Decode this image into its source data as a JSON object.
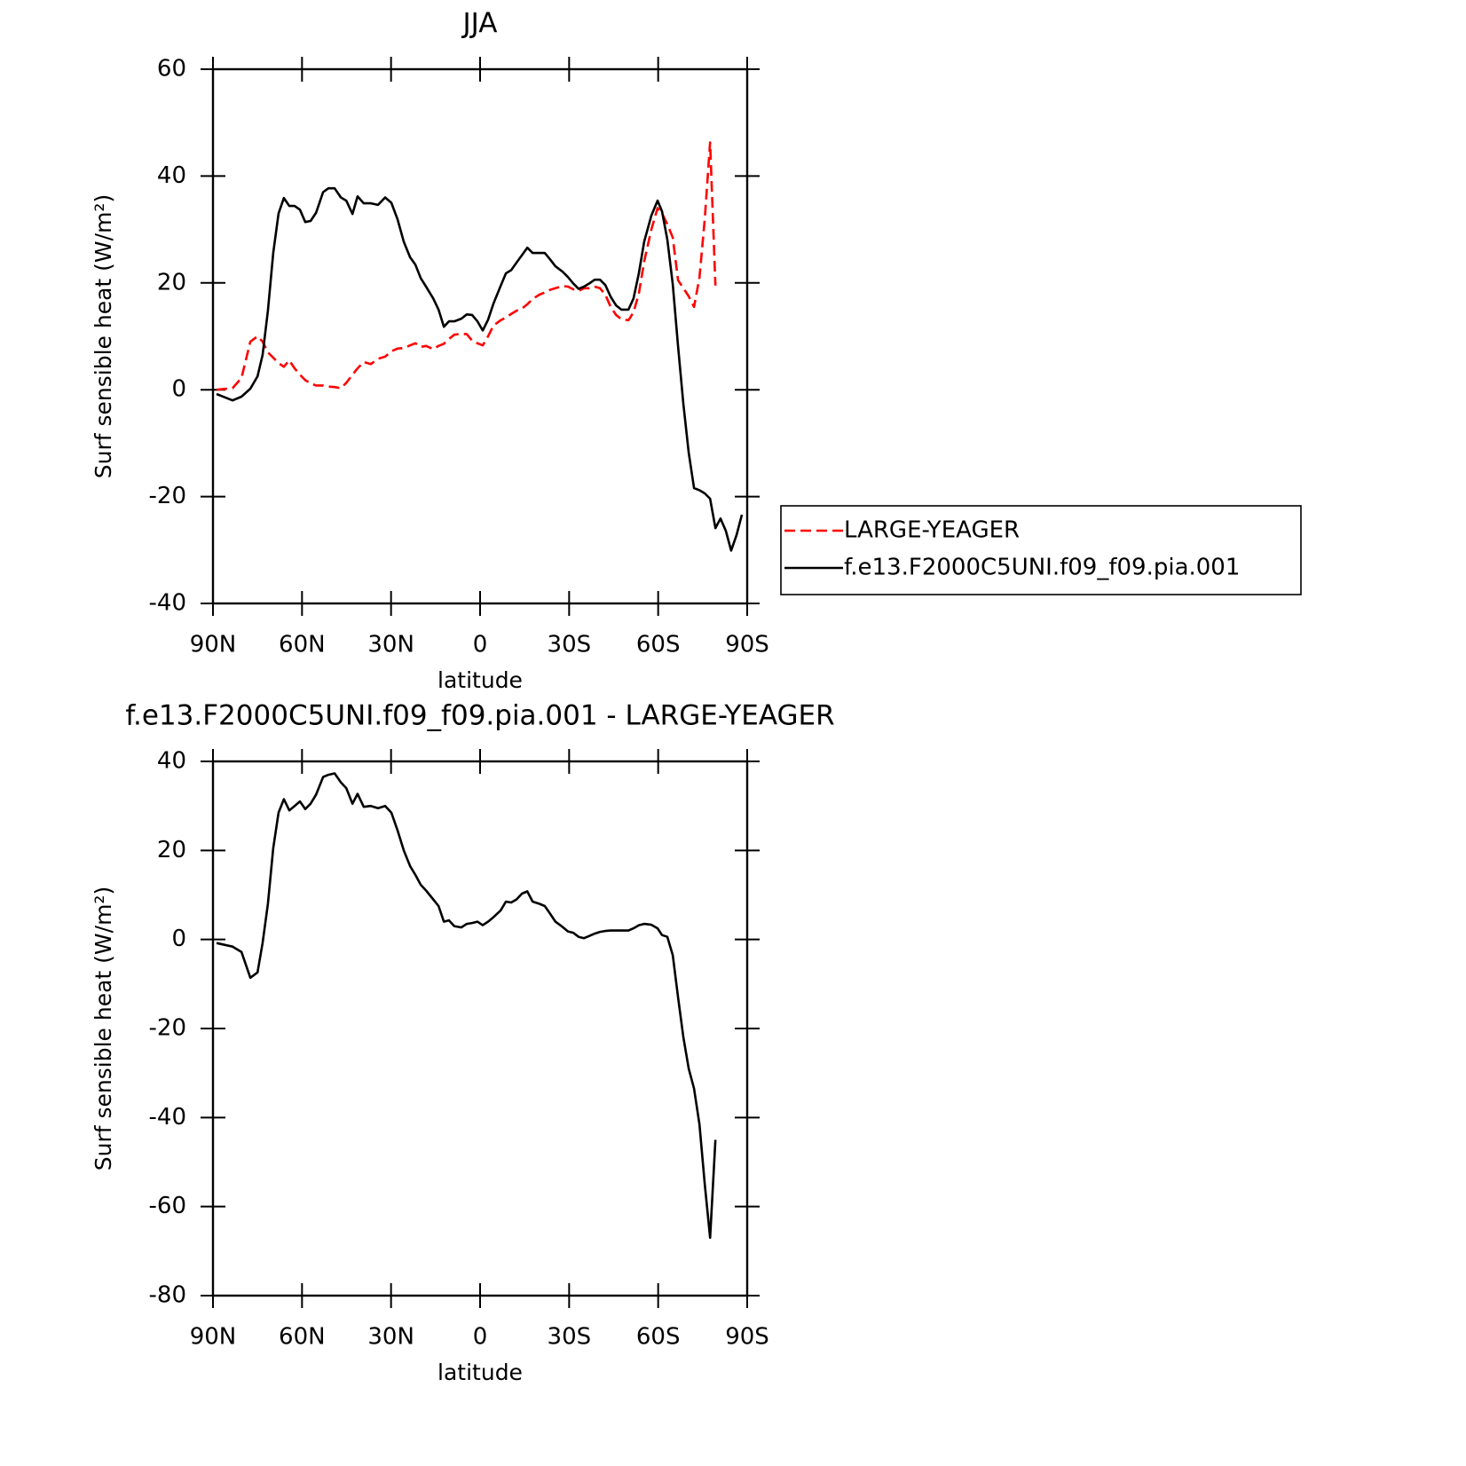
{
  "chart_data": [
    {
      "type": "line",
      "title": "JJA",
      "xlabel": "latitude",
      "ylabel": "Surf sensible heat (W/m²)",
      "x": [
        88.8,
        83.4,
        80.4,
        77.4,
        75,
        73.3,
        71.5,
        69.7,
        67.9,
        66.1,
        64.3,
        62.5,
        60.7,
        58.9,
        57.1,
        55.3,
        52.9,
        51.1,
        49,
        46.9,
        45.1,
        43,
        41.3,
        39.2,
        36.8,
        34.4,
        32,
        29.9,
        27.8,
        25.7,
        23.6,
        21.8,
        20,
        18.2,
        15.8,
        14,
        12.2,
        10.5,
        8.7,
        6.3,
        4.5,
        2.7,
        0.9,
        -0.9,
        -2.7,
        -4.5,
        -6.9,
        -8.7,
        -10.5,
        -12.3,
        -14.1,
        -15.9,
        -17.7,
        -20,
        -21.8,
        -23.6,
        -25.4,
        -27.8,
        -29.6,
        -31.4,
        -33.2,
        -35,
        -36.8,
        -38.6,
        -40.4,
        -42.2,
        -44,
        -45.8,
        -47.6,
        -50,
        -51.7,
        -53.5,
        -55.3,
        -57.7,
        -59.8,
        -61.3,
        -63.1,
        -64.9,
        -66.7,
        -68.5,
        -70.3,
        -72.1,
        -73.9,
        -75.7,
        -77.5,
        -79.3,
        -81,
        -82.8,
        -84.6,
        -86.4,
        -88.2
      ],
      "series": [
        {
          "name": "LARGE-YEAGER",
          "color": "#ff0000",
          "dash": "dashed",
          "values": [
            0,
            0.3,
            2.2,
            9.0,
            10.0,
            9.0,
            7,
            6,
            5,
            4.3,
            5.5,
            4,
            2.8,
            1.8,
            1.2,
            0.8,
            0.8,
            0.6,
            0.5,
            0.3,
            1.3,
            2.8,
            4,
            5.2,
            4.8,
            5.8,
            6.2,
            7.2,
            7.7,
            7.8,
            8.3,
            8.7,
            8,
            8.2,
            7.6,
            8.2,
            8.6,
            9.5,
            10.3,
            10.5,
            10.4,
            9.2,
            8.7,
            8.3,
            10,
            12,
            13,
            13.5,
            14.2,
            14.8,
            15.2,
            16,
            17,
            17.8,
            18.2,
            18.7,
            19,
            19.4,
            19.3,
            18.8,
            18.5,
            19,
            19,
            19.3,
            19,
            17.8,
            15.5,
            14,
            13.2,
            13,
            14.5,
            18,
            24,
            30,
            34,
            33,
            31,
            28.5,
            20.5,
            19,
            17.5,
            15.5,
            21,
            32,
            46.3,
            19.5,
            null,
            null,
            null,
            null,
            null
          ]
        },
        {
          "name": "f.e13.F2000C5UNI.f09_f09.pia.001",
          "color": "#000000",
          "dash": "solid",
          "values": [
            -0.8,
            -2.0,
            -1.3,
            0.2,
            2.5,
            6.5,
            14.8,
            25.6,
            33,
            35.9,
            34.4,
            34.4,
            33.7,
            31.4,
            31.6,
            33.1,
            37,
            37.7,
            37.7,
            36,
            35.4,
            32.9,
            36.2,
            34.9,
            34.9,
            34.6,
            36,
            35,
            31.9,
            27.7,
            24.8,
            23.4,
            20.9,
            19.3,
            17.1,
            15,
            11.8,
            12.8,
            12.8,
            13.3,
            14.1,
            14,
            12.8,
            11.1,
            13.1,
            16.1,
            19.4,
            21.8,
            22.4,
            23.8,
            25.2,
            26.6,
            25.6,
            25.6,
            25.6,
            24.4,
            23.1,
            22.1,
            21.1,
            19.9,
            18.9,
            19.3,
            19.9,
            20.6,
            20.6,
            19.6,
            17.4,
            15.8,
            15,
            15,
            17.1,
            21.8,
            27.7,
            32.6,
            35.4,
            33.4,
            28.1,
            19.8,
            8.1,
            -2.7,
            -11.8,
            -18.4,
            -18.8,
            -19.4,
            -20.4,
            -25.9,
            -24.1,
            -26.4,
            -30.1,
            -27.2,
            -23.4
          ]
        }
      ],
      "xlim": [
        90,
        -90
      ],
      "xticks": [
        {
          "value": 90,
          "label": "90N"
        },
        {
          "value": 60,
          "label": "60N"
        },
        {
          "value": 30,
          "label": "30N"
        },
        0,
        {
          "value": -30,
          "label": "30S"
        },
        {
          "value": -60,
          "label": "60S"
        },
        {
          "value": -90,
          "label": "90S"
        }
      ],
      "ylim": [
        -40,
        60
      ],
      "yticks": [
        -40,
        -20,
        0,
        20,
        40,
        60
      ],
      "legend": "right",
      "grid": false
    },
    {
      "type": "line",
      "title": "f.e13.F2000C5UNI.f09_f09.pia.001 - LARGE-YEAGER",
      "xlabel": "latitude",
      "ylabel": "Surf sensible heat (W/m²)",
      "x": [
        88.8,
        83.4,
        80.4,
        77.4,
        75,
        73.3,
        71.5,
        69.7,
        67.9,
        66.1,
        64.3,
        62.5,
        60.7,
        58.9,
        57.1,
        55.3,
        52.9,
        51.1,
        49,
        46.9,
        45.1,
        43,
        41.3,
        39.2,
        36.8,
        34.4,
        32,
        29.9,
        27.8,
        25.7,
        23.6,
        21.8,
        20,
        18.2,
        15.8,
        14,
        12.2,
        10.5,
        8.7,
        6.3,
        4.5,
        2.7,
        0.9,
        -0.9,
        -2.7,
        -4.5,
        -6.9,
        -8.7,
        -10.5,
        -12.3,
        -14.1,
        -15.9,
        -17.7,
        -20,
        -21.8,
        -23.6,
        -25.4,
        -27.8,
        -29.6,
        -31.4,
        -33.2,
        -35,
        -36.8,
        -38.6,
        -40.4,
        -42.2,
        -44,
        -45.8,
        -47.6,
        -50,
        -51.7,
        -53.5,
        -55.3,
        -57.7,
        -59.8,
        -61.3,
        -63.1,
        -64.9,
        -66.7,
        -68.5,
        -70.3,
        -72.1,
        -73.9,
        -75.7,
        -77.5,
        -79.3,
        -81,
        -82.8,
        -84.6,
        -86.4,
        -88.2
      ],
      "series": [
        {
          "color": "#000000",
          "dash": "solid",
          "values": [
            -0.8,
            -1.6,
            -2.8,
            -8.6,
            -7.4,
            -0.8,
            8,
            20.5,
            28.5,
            31.5,
            29,
            30,
            31,
            29.3,
            30.5,
            32.5,
            36.5,
            37,
            37.3,
            35.3,
            34,
            30.5,
            32.7,
            29.8,
            30,
            29.5,
            30,
            28.5,
            24.5,
            20,
            16.5,
            14.5,
            12.3,
            11,
            9,
            7.5,
            4,
            4.3,
            3,
            2.7,
            3.5,
            3.7,
            4,
            3.2,
            4,
            5,
            6.5,
            8.5,
            8.3,
            9,
            10.3,
            10.8,
            8.5,
            8,
            7.5,
            5.8,
            4,
            2.8,
            1.8,
            1.5,
            0.6,
            0.3,
            0.8,
            1.3,
            1.7,
            1.9,
            2,
            2,
            2,
            2,
            2.5,
            3.2,
            3.5,
            3.3,
            2.5,
            1,
            0.6,
            -3.5,
            -13,
            -22,
            -29,
            -33.5,
            -41.5,
            -55,
            -67,
            -45,
            null,
            null,
            null,
            null,
            null
          ]
        }
      ],
      "xlim": [
        90,
        -90
      ],
      "xticks": [
        {
          "value": 90,
          "label": "90N"
        },
        {
          "value": 60,
          "label": "60N"
        },
        {
          "value": 30,
          "label": "30N"
        },
        0,
        {
          "value": -30,
          "label": "30S"
        },
        {
          "value": -60,
          "label": "60S"
        },
        {
          "value": -90,
          "label": "90S"
        }
      ],
      "ylim": [
        -80,
        40
      ],
      "yticks": [
        -80,
        -60,
        -40,
        -20,
        0,
        20,
        40
      ],
      "grid": false
    }
  ]
}
